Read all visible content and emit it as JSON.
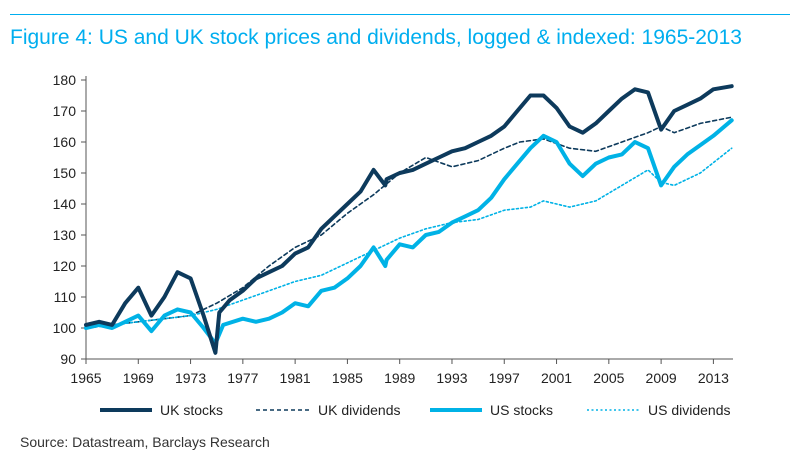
{
  "title": "Figure 4: US and UK stock prices and dividends, logged & indexed: 1965-2013",
  "source": "Source: Datastream, Barclays Research",
  "colors": {
    "accent": "#00aeef",
    "uk": "#0d3a5c",
    "us": "#00b2e6"
  },
  "chart_data": {
    "type": "line",
    "xlim": [
      1965,
      2014.5
    ],
    "ylim": [
      90,
      180
    ],
    "x_ticks": [
      1965,
      1969,
      1973,
      1977,
      1981,
      1985,
      1989,
      1993,
      1997,
      2001,
      2005,
      2009,
      2013
    ],
    "y_ticks": [
      90,
      100,
      110,
      120,
      130,
      140,
      150,
      160,
      170,
      180
    ],
    "grid": false,
    "legend_position": "bottom",
    "series": [
      {
        "name": "UK stocks",
        "style": "solid-thick",
        "color": "#0d3a5c",
        "points": [
          [
            1965,
            101
          ],
          [
            1966,
            102
          ],
          [
            1967,
            101
          ],
          [
            1968,
            108
          ],
          [
            1969,
            113
          ],
          [
            1970,
            104
          ],
          [
            1971,
            110
          ],
          [
            1972,
            118
          ],
          [
            1973,
            116
          ],
          [
            1974,
            104
          ],
          [
            1974.9,
            92
          ],
          [
            1975.2,
            105
          ],
          [
            1976,
            109
          ],
          [
            1977,
            112
          ],
          [
            1978,
            116
          ],
          [
            1979,
            118
          ],
          [
            1980,
            120
          ],
          [
            1981,
            124
          ],
          [
            1982,
            126
          ],
          [
            1983,
            132
          ],
          [
            1984,
            136
          ],
          [
            1985,
            140
          ],
          [
            1986,
            144
          ],
          [
            1987,
            151
          ],
          [
            1987.9,
            146
          ],
          [
            1988,
            148
          ],
          [
            1989,
            150
          ],
          [
            1990,
            151
          ],
          [
            1991,
            153
          ],
          [
            1992,
            155
          ],
          [
            1993,
            157
          ],
          [
            1994,
            158
          ],
          [
            1995,
            160
          ],
          [
            1996,
            162
          ],
          [
            1997,
            165
          ],
          [
            1998,
            170
          ],
          [
            1999,
            175
          ],
          [
            2000,
            175
          ],
          [
            2001,
            171
          ],
          [
            2002,
            165
          ],
          [
            2003,
            163
          ],
          [
            2004,
            166
          ],
          [
            2005,
            170
          ],
          [
            2006,
            174
          ],
          [
            2007,
            177
          ],
          [
            2008,
            176
          ],
          [
            2009,
            164
          ],
          [
            2010,
            170
          ],
          [
            2011,
            172
          ],
          [
            2012,
            174
          ],
          [
            2013,
            177
          ],
          [
            2014.4,
            178
          ]
        ]
      },
      {
        "name": "UK dividends",
        "style": "dashed",
        "color": "#0d3a5c",
        "points": [
          [
            1965,
            100
          ],
          [
            1967,
            101
          ],
          [
            1969,
            102
          ],
          [
            1971,
            103
          ],
          [
            1973,
            104
          ],
          [
            1975,
            108
          ],
          [
            1977,
            113
          ],
          [
            1979,
            120
          ],
          [
            1981,
            126
          ],
          [
            1983,
            130
          ],
          [
            1985,
            137
          ],
          [
            1987,
            143
          ],
          [
            1989,
            150
          ],
          [
            1991,
            155
          ],
          [
            1993,
            152
          ],
          [
            1995,
            154
          ],
          [
            1997,
            158
          ],
          [
            1998.2,
            160
          ],
          [
            2000,
            161
          ],
          [
            2002,
            158
          ],
          [
            2004,
            157
          ],
          [
            2006,
            160
          ],
          [
            2008,
            163
          ],
          [
            2009,
            165
          ],
          [
            2010,
            163
          ],
          [
            2012,
            166
          ],
          [
            2014.4,
            168
          ]
        ]
      },
      {
        "name": "US stocks",
        "style": "solid-thick",
        "color": "#00b2e6",
        "points": [
          [
            1965,
            100
          ],
          [
            1966,
            101
          ],
          [
            1967,
            100
          ],
          [
            1968,
            102
          ],
          [
            1969,
            104
          ],
          [
            1970,
            99
          ],
          [
            1971,
            104
          ],
          [
            1972,
            106
          ],
          [
            1973,
            105
          ],
          [
            1974,
            100
          ],
          [
            1974.9,
            95
          ],
          [
            1975.5,
            101
          ],
          [
            1977,
            103
          ],
          [
            1978,
            102
          ],
          [
            1979,
            103
          ],
          [
            1980,
            105
          ],
          [
            1981,
            108
          ],
          [
            1982,
            107
          ],
          [
            1983,
            112
          ],
          [
            1984,
            113
          ],
          [
            1985,
            116
          ],
          [
            1986,
            120
          ],
          [
            1987,
            126
          ],
          [
            1987.9,
            120
          ],
          [
            1988,
            122
          ],
          [
            1989,
            127
          ],
          [
            1990,
            126
          ],
          [
            1991,
            130
          ],
          [
            1992,
            131
          ],
          [
            1993,
            134
          ],
          [
            1994,
            136
          ],
          [
            1995,
            138
          ],
          [
            1996,
            142
          ],
          [
            1997,
            148
          ],
          [
            1998,
            153
          ],
          [
            1999,
            158
          ],
          [
            2000,
            162
          ],
          [
            2001,
            160
          ],
          [
            2002,
            153
          ],
          [
            2003,
            149
          ],
          [
            2004,
            153
          ],
          [
            2005,
            155
          ],
          [
            2006,
            156
          ],
          [
            2007,
            160
          ],
          [
            2008,
            158
          ],
          [
            2009,
            146
          ],
          [
            2010,
            152
          ],
          [
            2011,
            156
          ],
          [
            2012,
            159
          ],
          [
            2013,
            162
          ],
          [
            2014.4,
            167
          ]
        ]
      },
      {
        "name": "US dividends",
        "style": "dotted",
        "color": "#00b2e6",
        "points": [
          [
            1965,
            100
          ],
          [
            1967,
            101
          ],
          [
            1969,
            102
          ],
          [
            1971,
            103
          ],
          [
            1973,
            104
          ],
          [
            1975,
            106
          ],
          [
            1977,
            109
          ],
          [
            1979,
            112
          ],
          [
            1981,
            115
          ],
          [
            1983,
            117
          ],
          [
            1985,
            121
          ],
          [
            1987,
            125
          ],
          [
            1989,
            129
          ],
          [
            1991,
            132
          ],
          [
            1993,
            134
          ],
          [
            1995,
            135
          ],
          [
            1997,
            138
          ],
          [
            1999,
            139
          ],
          [
            2000,
            141
          ],
          [
            2002,
            139
          ],
          [
            2004,
            141
          ],
          [
            2006,
            146
          ],
          [
            2008,
            151
          ],
          [
            2009,
            147
          ],
          [
            2010,
            146
          ],
          [
            2012,
            150
          ],
          [
            2014.4,
            158
          ]
        ]
      }
    ]
  }
}
